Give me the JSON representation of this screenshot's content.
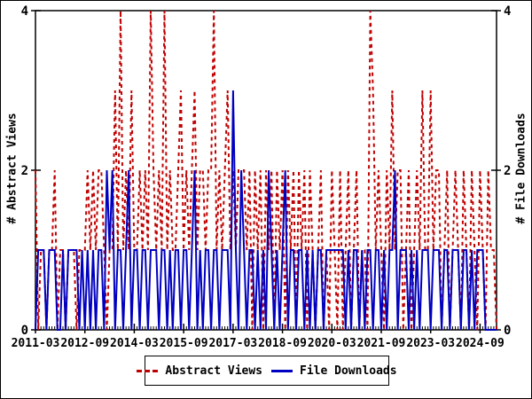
{
  "figure": {
    "background": "#ffffff",
    "border_color": "#000000",
    "abstract_color": "#c00000",
    "downloads_color": "#0000c0"
  },
  "axes": {
    "left_label": "# Abstract Views",
    "right_label": "# File Downloads",
    "y_ticks": [
      "0",
      "2",
      "4"
    ],
    "y_tick_values": [
      0,
      2,
      4
    ],
    "x_ticks": [
      {
        "label": "2011-03",
        "month_index": 0
      },
      {
        "label": "2012-09",
        "month_index": 18
      },
      {
        "label": "2014-03",
        "month_index": 36
      },
      {
        "label": "2015-09",
        "month_index": 54
      },
      {
        "label": "2017-03",
        "month_index": 72
      },
      {
        "label": "2018-09",
        "month_index": 90
      },
      {
        "label": "2020-03",
        "month_index": 108
      },
      {
        "label": "2021-09",
        "month_index": 126
      },
      {
        "label": "2023-03",
        "month_index": 144
      },
      {
        "label": "2024-09",
        "month_index": 162
      }
    ]
  },
  "legend": {
    "abstract_label": "Abstract Views",
    "downloads_label": "File Downloads"
  },
  "chart_data": {
    "type": "line",
    "title": "",
    "x_start": "2011-03",
    "x_step_months": 1,
    "n_months": 169,
    "ylim": [
      0,
      4
    ],
    "grid": false,
    "legend_position": "bottom-center",
    "series": [
      {
        "name": "Abstract Views",
        "axis": "left",
        "color": "#c00000",
        "style": "dashed",
        "values": [
          2,
          0,
          1,
          1,
          0,
          1,
          1,
          2,
          0,
          1,
          1,
          0,
          1,
          1,
          1,
          0,
          1,
          1,
          1,
          2,
          1,
          2,
          1,
          2,
          2,
          1,
          0,
          1,
          1,
          3,
          1,
          4,
          1,
          2,
          1,
          3,
          1,
          1,
          2,
          1,
          2,
          1,
          4,
          2,
          1,
          2,
          1,
          4,
          1,
          2,
          1,
          1,
          2,
          3,
          1,
          2,
          1,
          2,
          3,
          1,
          2,
          2,
          1,
          2,
          2,
          4,
          1,
          2,
          1,
          2,
          3,
          1,
          2,
          1,
          2,
          2,
          2,
          1,
          2,
          0,
          2,
          1,
          2,
          0,
          2,
          1,
          2,
          0,
          2,
          1,
          2,
          0,
          2,
          1,
          2,
          0,
          2,
          1,
          2,
          0,
          2,
          1,
          0,
          1,
          2,
          0,
          1,
          0,
          2,
          1,
          0,
          2,
          0,
          1,
          2,
          0,
          1,
          2,
          0,
          1,
          1,
          0,
          4,
          3,
          1,
          2,
          1,
          0,
          2,
          1,
          3,
          1,
          2,
          2,
          0,
          1,
          2,
          0,
          1,
          2,
          1,
          3,
          1,
          1,
          3,
          1,
          2,
          2,
          0,
          1,
          2,
          0,
          1,
          2,
          1,
          0,
          2,
          1,
          0,
          2,
          1,
          0,
          2,
          1,
          0,
          2,
          1,
          1,
          0
        ]
      },
      {
        "name": "File Downloads",
        "axis": "right",
        "color": "#0000c0",
        "style": "solid",
        "values": [
          0,
          1,
          1,
          1,
          0,
          1,
          1,
          1,
          0,
          0,
          1,
          0,
          1,
          1,
          1,
          1,
          0,
          1,
          0,
          1,
          0,
          1,
          0,
          1,
          1,
          0,
          2,
          1,
          2,
          0,
          1,
          1,
          0,
          1,
          2,
          0,
          1,
          1,
          0,
          1,
          1,
          0,
          1,
          1,
          1,
          0,
          1,
          1,
          0,
          1,
          0,
          1,
          1,
          0,
          1,
          1,
          0,
          1,
          2,
          0,
          1,
          0,
          1,
          1,
          0,
          1,
          1,
          0,
          1,
          1,
          1,
          0,
          3,
          1,
          0,
          2,
          1,
          0,
          1,
          1,
          0,
          1,
          0,
          1,
          0,
          2,
          1,
          0,
          1,
          0,
          1,
          2,
          0,
          1,
          1,
          0,
          1,
          1,
          0,
          1,
          0,
          1,
          0,
          1,
          1,
          0,
          1,
          1,
          1,
          1,
          1,
          1,
          1,
          0,
          1,
          0,
          1,
          1,
          0,
          1,
          0,
          1,
          1,
          0,
          1,
          1,
          0,
          1,
          0,
          1,
          1,
          2,
          0,
          1,
          1,
          1,
          0,
          1,
          0,
          1,
          0,
          1,
          1,
          1,
          0,
          1,
          1,
          1,
          0,
          1,
          1,
          0,
          1,
          1,
          1,
          0,
          1,
          1,
          0,
          1,
          0,
          1,
          1,
          1,
          0,
          0,
          0,
          0,
          0
        ]
      }
    ]
  }
}
